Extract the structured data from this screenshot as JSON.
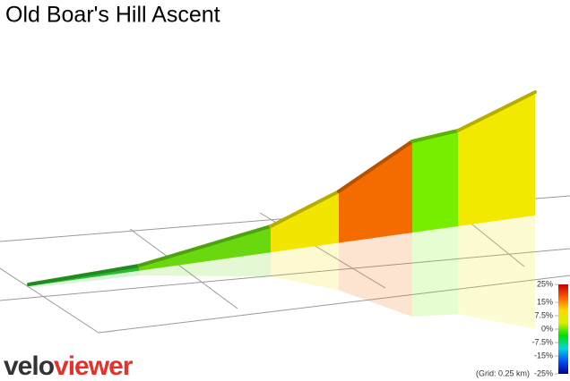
{
  "chart_data": {
    "type": "gradient-profile-3d",
    "title": "Old Boar's Hill Ascent",
    "segments": [
      {
        "gradient": 1.5,
        "color": "#2bbb2b"
      },
      {
        "gradient": 4,
        "color": "#6ad80e"
      },
      {
        "gradient": 8,
        "color": "#f2e600"
      },
      {
        "gradient": 13,
        "color": "#f46c00"
      },
      {
        "gradient": 4.5,
        "color": "#77ee00"
      },
      {
        "gradient": 8,
        "color": "#f2e800"
      }
    ],
    "colorbar": {
      "clim": [
        -25,
        25
      ],
      "ticks": [
        {
          "value": 25,
          "label": "25%"
        },
        {
          "value": 15,
          "label": "15%"
        },
        {
          "value": 7.5,
          "label": "7.5%"
        },
        {
          "value": 0,
          "label": "0%"
        },
        {
          "value": -7.5,
          "label": "-7.5%"
        },
        {
          "value": -15,
          "label": "-15%"
        },
        {
          "value": -25,
          "label": "-25%"
        }
      ],
      "colors": [
        "#c80000",
        "#ff5a00",
        "#ffd800",
        "#d8f000",
        "#00e000",
        "#00d8d8",
        "#0050ff",
        "#00008c"
      ]
    },
    "grid_note": "(Grid: 0.25 km)",
    "logo": {
      "first": "velo",
      "second": "viewer"
    }
  }
}
